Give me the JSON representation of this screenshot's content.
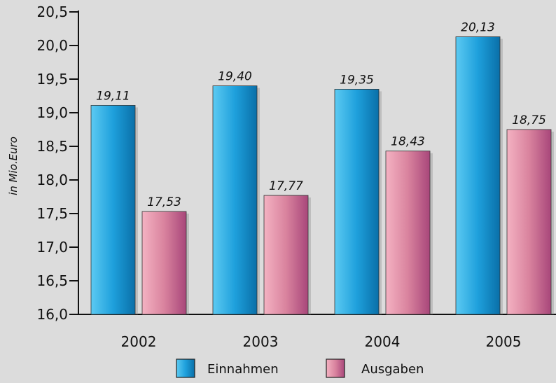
{
  "chart_data": {
    "type": "bar",
    "categories": [
      "2002",
      "2003",
      "2004",
      "2005"
    ],
    "series": [
      {
        "name": "Einnahmen",
        "values": [
          19.11,
          19.4,
          19.35,
          20.13
        ],
        "labels": [
          "19,11",
          "19,40",
          "19,35",
          "20,13"
        ]
      },
      {
        "name": "Ausgaben",
        "values": [
          17.53,
          17.77,
          18.43,
          18.75
        ],
        "labels": [
          "17,53",
          "17,77",
          "18,43",
          "18,75"
        ]
      }
    ],
    "ylabel": "in Mio.Euro",
    "xlabel": "",
    "title": "",
    "ylim": [
      16.0,
      20.5
    ],
    "yticks": [
      16.0,
      16.5,
      17.0,
      17.5,
      18.0,
      18.5,
      19.0,
      19.5,
      20.0,
      20.5
    ],
    "ytick_labels": [
      "16,0",
      "16,5",
      "17,0",
      "17,5",
      "18,0",
      "18,5",
      "19,0",
      "19,5",
      "20,0",
      "20,5"
    ],
    "grid": false,
    "legend_position": "bottom",
    "colors": {
      "Einnahmen": "#29a8e0",
      "Ausgaben": "#e58aa4"
    }
  }
}
